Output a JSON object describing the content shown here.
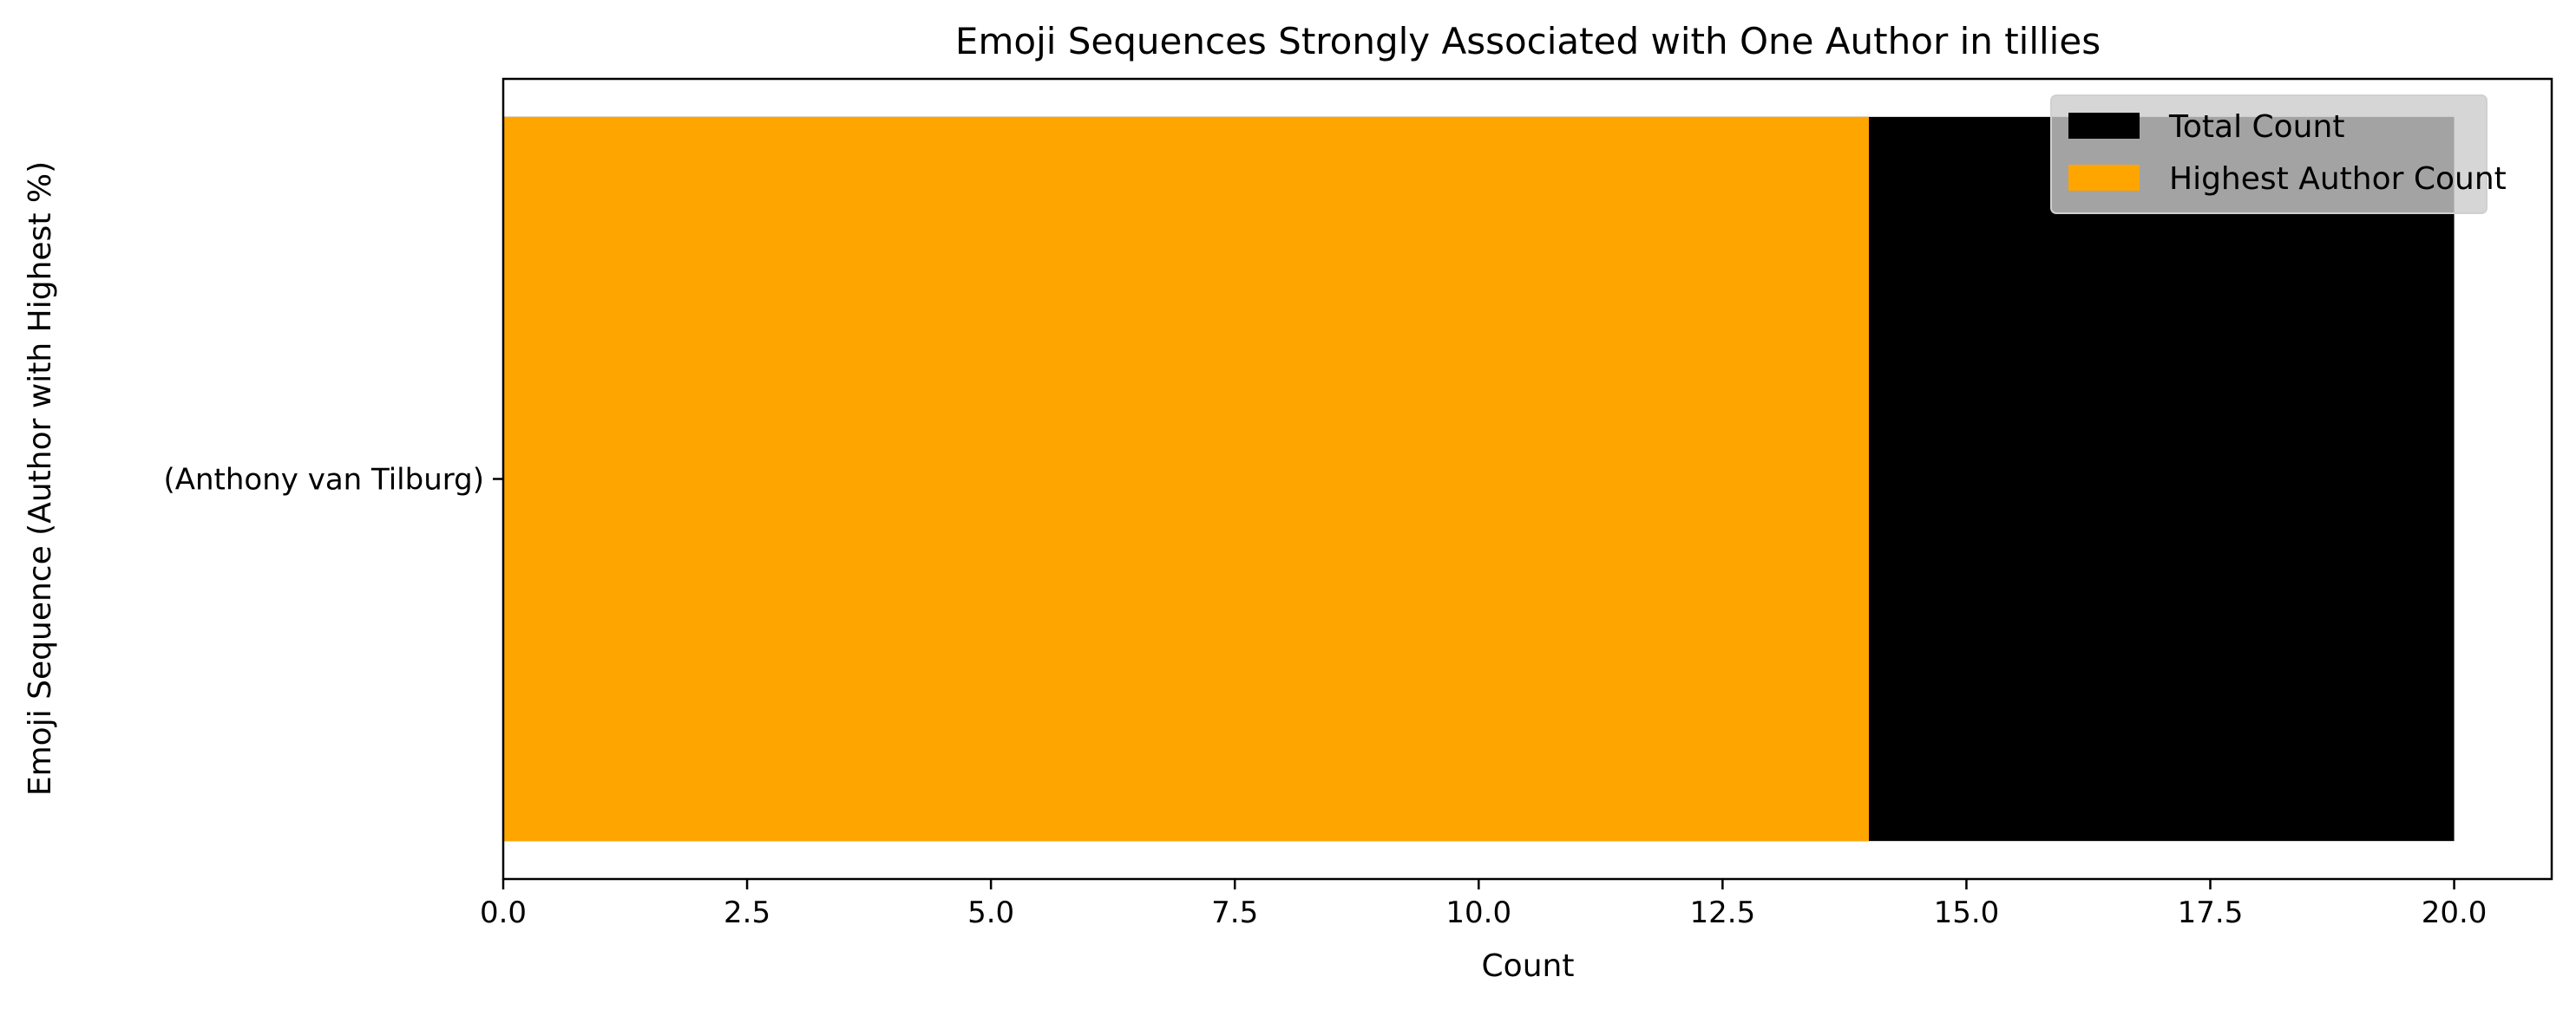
{
  "chart_data": {
    "type": "bar",
    "orientation": "horizontal",
    "title": "Emoji Sequences Strongly Associated with One Author in tillies",
    "xlabel": "Count",
    "ylabel": "Emoji Sequence (Author with Highest %)",
    "categories": [
      "(Anthony van Tilburg)"
    ],
    "series": [
      {
        "name": "Total Count",
        "values": [
          20
        ],
        "color": "#000000"
      },
      {
        "name": "Highest Author Count",
        "values": [
          14
        ],
        "color": "#FFA500"
      }
    ],
    "xlim": [
      0,
      21
    ],
    "xticks": [
      0,
      2.5,
      5,
      7.5,
      10,
      12.5,
      15,
      17.5,
      20
    ],
    "xtick_labels": [
      "0.0",
      "2.5",
      "5.0",
      "7.5",
      "10.0",
      "12.5",
      "15.0",
      "17.5",
      "20.0"
    ],
    "grid": false,
    "legend_position": "upper right"
  }
}
